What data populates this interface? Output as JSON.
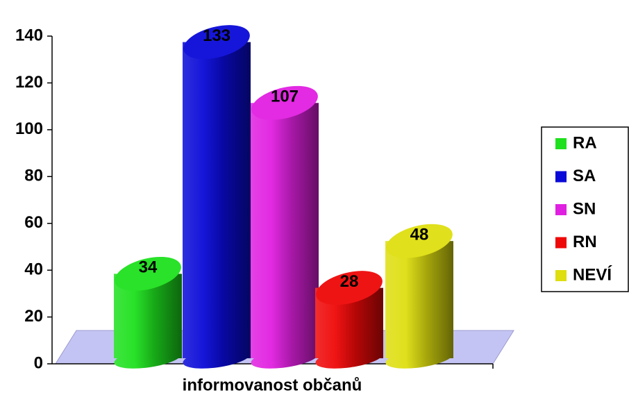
{
  "chart_data": {
    "type": "cylinder-bar",
    "categories": [
      "informovanost občanů"
    ],
    "series": [
      {
        "name": "RA",
        "color": "#1ee01e",
        "values": [
          34
        ]
      },
      {
        "name": "SA",
        "color": "#0a0ad8",
        "values": [
          133
        ]
      },
      {
        "name": "SN",
        "color": "#e020e0",
        "values": [
          107
        ]
      },
      {
        "name": "RN",
        "color": "#ee0808",
        "values": [
          28
        ]
      },
      {
        "name": "NEVÍ",
        "color": "#dede10",
        "values": [
          48
        ]
      }
    ],
    "ylim": [
      0,
      140
    ],
    "yticks": [
      0,
      20,
      40,
      60,
      80,
      100,
      120,
      140
    ],
    "legend": "right"
  }
}
